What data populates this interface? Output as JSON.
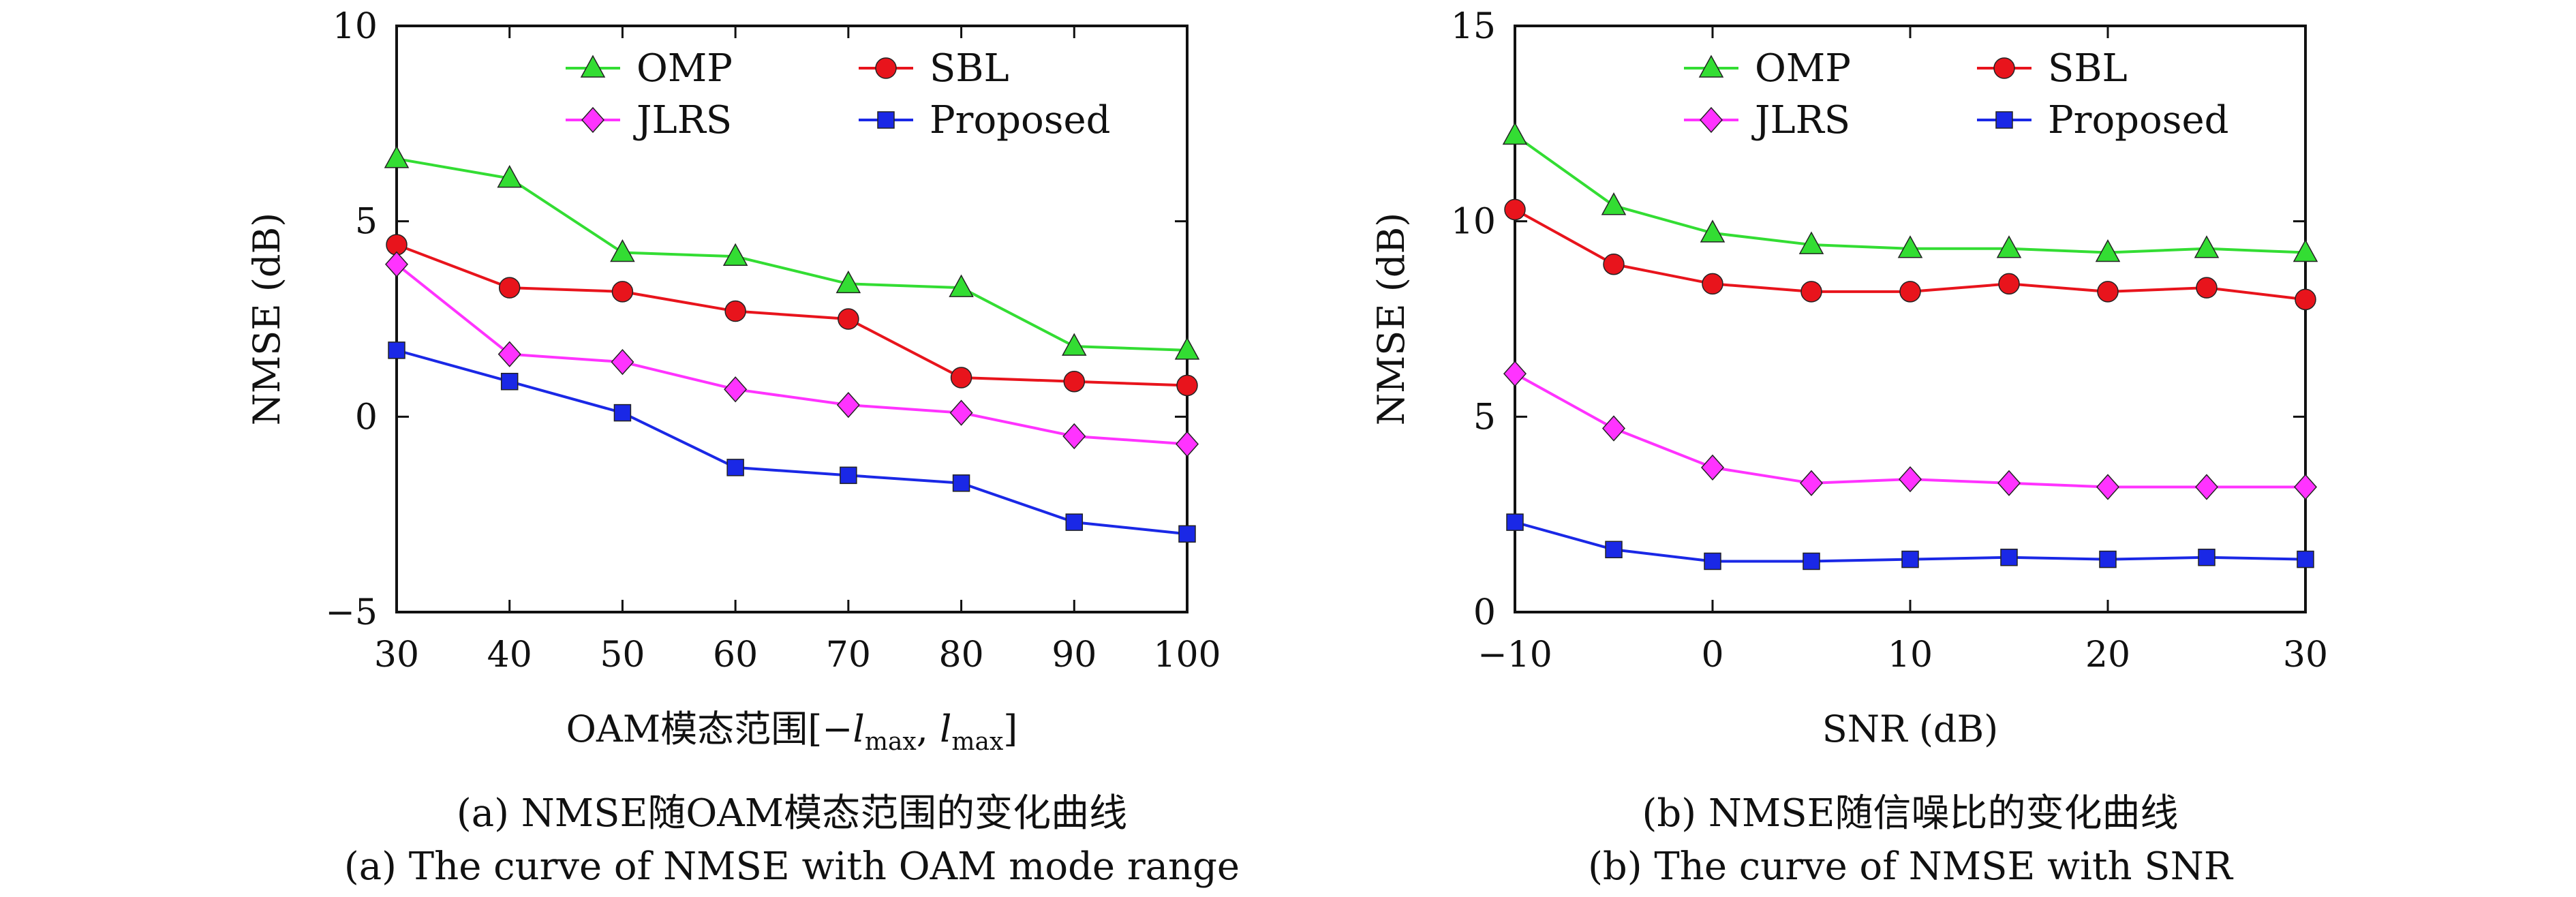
{
  "chart_data": [
    {
      "id": "a",
      "type": "line",
      "xlabel": "OAM模态范围[−l_max, l_max]",
      "ylabel": "NMSE (dB)",
      "xlim": [
        30,
        100
      ],
      "ylim": [
        -5,
        10
      ],
      "xticks": [
        "30",
        "40",
        "50",
        "60",
        "70",
        "80",
        "90",
        "100"
      ],
      "yticks": [
        "−5",
        "0",
        "5",
        "10"
      ],
      "grid": false,
      "legend": "top, two columns",
      "x": [
        30,
        40,
        50,
        60,
        70,
        80,
        90,
        100
      ],
      "series": [
        {
          "name": "OMP",
          "marker": "triangle",
          "color": "#33dd33",
          "values": [
            6.6,
            6.1,
            4.2,
            4.1,
            3.4,
            3.3,
            1.8,
            1.7
          ]
        },
        {
          "name": "SBL",
          "marker": "circle",
          "color": "#e8141c",
          "values": [
            4.4,
            3.3,
            3.2,
            2.7,
            2.5,
            1.0,
            0.9,
            0.8
          ]
        },
        {
          "name": "JLRS",
          "marker": "diamond",
          "color": "#ff33ff",
          "values": [
            3.9,
            1.6,
            1.4,
            0.7,
            0.3,
            0.1,
            -0.5,
            -0.7
          ]
        },
        {
          "name": "Proposed",
          "marker": "square",
          "color": "#1a28e6",
          "values": [
            1.7,
            0.9,
            0.1,
            -1.3,
            -1.5,
            -1.7,
            -2.7,
            -3.0
          ]
        }
      ],
      "caption_cn": "(a) NMSE随OAM模态范围的变化曲线",
      "caption_en": "(a) The curve of NMSE with OAM mode range"
    },
    {
      "id": "b",
      "type": "line",
      "xlabel": "SNR (dB)",
      "ylabel": "NMSE (dB)",
      "xlim": [
        -10,
        30
      ],
      "ylim": [
        0,
        15
      ],
      "xticks": [
        "−10",
        "0",
        "10",
        "20",
        "30"
      ],
      "yticks": [
        "0",
        "5",
        "10",
        "15"
      ],
      "grid": false,
      "legend": "top, two columns",
      "x": [
        -10,
        -5,
        0,
        5,
        10,
        15,
        20,
        25,
        30
      ],
      "series": [
        {
          "name": "OMP",
          "marker": "triangle",
          "color": "#33dd33",
          "values": [
            12.2,
            10.4,
            9.7,
            9.4,
            9.3,
            9.3,
            9.2,
            9.3,
            9.2
          ]
        },
        {
          "name": "SBL",
          "marker": "circle",
          "color": "#e8141c",
          "values": [
            10.3,
            8.9,
            8.4,
            8.2,
            8.2,
            8.4,
            8.2,
            8.3,
            8.0
          ]
        },
        {
          "name": "JLRS",
          "marker": "diamond",
          "color": "#ff33ff",
          "values": [
            6.1,
            4.7,
            3.7,
            3.3,
            3.4,
            3.3,
            3.2,
            3.2,
            3.2
          ]
        },
        {
          "name": "Proposed",
          "marker": "square",
          "color": "#1a28e6",
          "values": [
            2.3,
            1.6,
            1.3,
            1.3,
            1.35,
            1.4,
            1.35,
            1.4,
            1.35
          ]
        }
      ],
      "caption_cn": "(b) NMSE随信噪比的变化曲线",
      "caption_en": "(b) The curve of NMSE with SNR"
    }
  ]
}
